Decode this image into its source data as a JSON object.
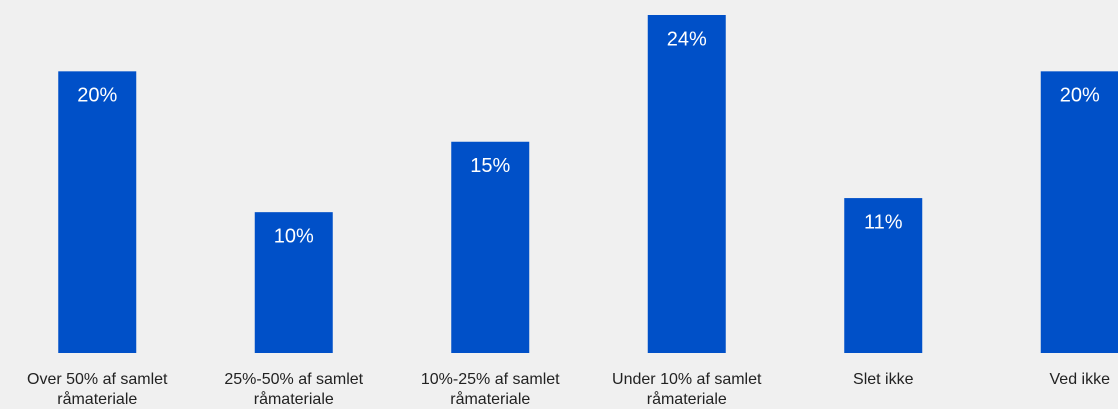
{
  "chart_data": {
    "type": "bar",
    "categories": [
      "Over 50% af samlet råmateriale",
      "25%-50% af samlet råmateriale",
      "10%-25% af samlet råmateriale",
      "Under 10% af samlet råmateriale",
      "Slet ikke",
      "Ved ikke"
    ],
    "values": [
      20,
      10,
      15,
      24,
      11,
      20
    ],
    "value_labels": [
      "20%",
      "10%",
      "15%",
      "24%",
      "11%",
      "20%"
    ],
    "color": "#0050c8"
  }
}
